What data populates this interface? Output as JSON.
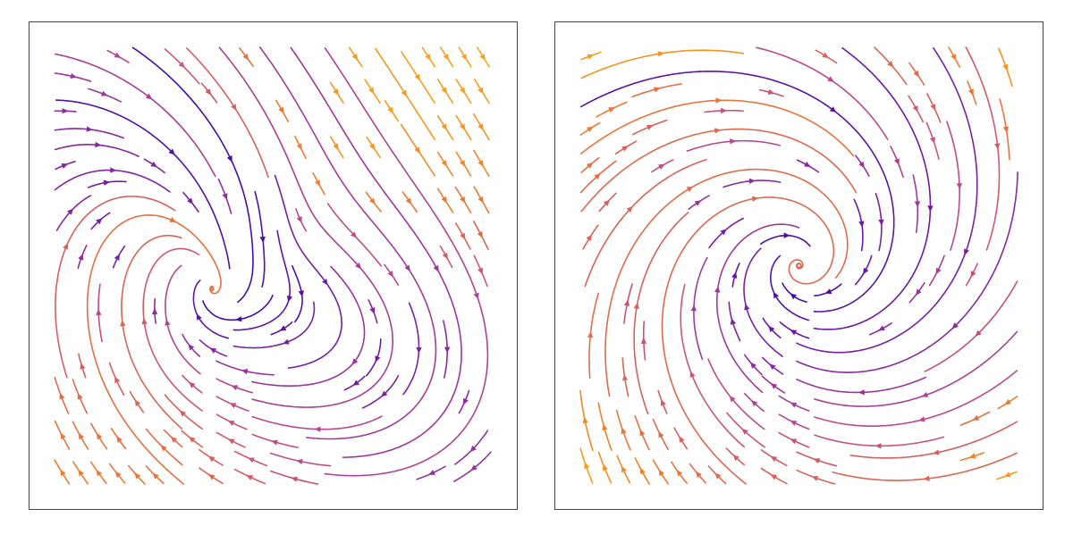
{
  "chart_data": [
    {
      "type": "streamplot",
      "title": "",
      "xlabel": "",
      "ylabel": "",
      "xlim": [
        -1,
        1
      ],
      "ylim": [
        -1,
        1
      ],
      "axes_visible": false,
      "grid": false,
      "colormap": [
        "#2a08a8",
        "#5a10a6",
        "#8a2aa0",
        "#b84890",
        "#d8605a",
        "#f07e2a",
        "#fba317"
      ],
      "color_by": "speed",
      "fixed_points": [
        {
          "kind": "spiral",
          "x": -0.35,
          "y": -0.35
        },
        {
          "kind": "saddle",
          "x": 0.15,
          "y": 0.2
        }
      ]
    },
    {
      "type": "streamplot",
      "title": "",
      "xlabel": "",
      "ylabel": "",
      "xlim": [
        -1,
        1
      ],
      "ylim": [
        -1,
        1
      ],
      "axes_visible": false,
      "grid": false,
      "colormap": [
        "#2a08a8",
        "#5a10a6",
        "#8a2aa0",
        "#b84890",
        "#d8605a",
        "#f07e2a",
        "#fba317"
      ],
      "color_by": "speed",
      "fixed_points": [
        {
          "kind": "spiral",
          "x": 0.0,
          "y": 0.0
        }
      ]
    }
  ]
}
